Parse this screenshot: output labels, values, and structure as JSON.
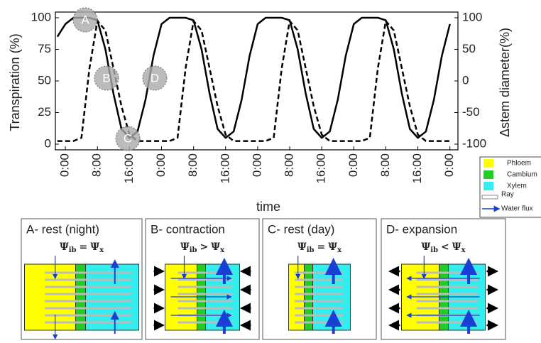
{
  "chart_data": {
    "type": "line",
    "ylabel": "Transpiration (%)",
    "y2label": "Δstem diameter(%)",
    "xlabel": "time",
    "x": [
      -2,
      0,
      2,
      4,
      6,
      8,
      10,
      12,
      14,
      16,
      18,
      20,
      22,
      24,
      26,
      28,
      30,
      32,
      34,
      36,
      38,
      40,
      42,
      44,
      46,
      48,
      50,
      52,
      54,
      56,
      58,
      60,
      62,
      64,
      66,
      68,
      70,
      72,
      74,
      76,
      78,
      80,
      82,
      84,
      86,
      88,
      90,
      92,
      94,
      96
    ],
    "xlim": [
      -2.5,
      98
    ],
    "xticks": [
      {
        "value": 0,
        "label": "0:00"
      },
      {
        "value": 8,
        "label": "8:00"
      },
      {
        "value": 16,
        "label": "16:00"
      },
      {
        "value": 24,
        "label": "0:00"
      },
      {
        "value": 32,
        "label": "8:00"
      },
      {
        "value": 40,
        "label": "16:00"
      },
      {
        "value": 48,
        "label": "0:00"
      },
      {
        "value": 56,
        "label": "8:00"
      },
      {
        "value": 64,
        "label": "16:00"
      },
      {
        "value": 72,
        "label": "0:00"
      },
      {
        "value": 80,
        "label": "8:00"
      },
      {
        "value": 88,
        "label": "16:00"
      },
      {
        "value": 96,
        "label": "0:00"
      }
    ],
    "ylim": [
      0,
      100
    ],
    "yticks": [
      0,
      25,
      50,
      75,
      100
    ],
    "y2lim": [
      -100,
      100
    ],
    "y2ticks": [
      -100,
      -50,
      0,
      50,
      100
    ],
    "series": [
      {
        "color": "#000000",
        "linestyle": "solid",
        "values": [
          85,
          95,
          100,
          100,
          100,
          98,
          75,
          40,
          12,
          5,
          10,
          35,
          70,
          95,
          100,
          100,
          100,
          98,
          75,
          40,
          12,
          5,
          10,
          35,
          70,
          95,
          100,
          100,
          100,
          98,
          75,
          40,
          12,
          5,
          10,
          35,
          70,
          95,
          100,
          100,
          100,
          98,
          75,
          40,
          12,
          5,
          10,
          35,
          70,
          95
        ]
      },
      {
        "color": "#000000",
        "linestyle": "dashed",
        "axis": "y2",
        "values": [
          -95,
          -95,
          -95,
          -90,
          20,
          95,
          80,
          20,
          -40,
          -85,
          -95,
          -95,
          -95,
          -95,
          -95,
          -90,
          20,
          95,
          80,
          20,
          -40,
          -85,
          -95,
          -95,
          -95,
          -95,
          -95,
          -90,
          20,
          95,
          80,
          20,
          -40,
          -85,
          -95,
          -95,
          -95,
          -95,
          -95,
          -90,
          20,
          95,
          80,
          20,
          -40,
          -85,
          -95,
          -95,
          -95,
          -95
        ]
      }
    ],
    "annotations": [
      "A",
      "B",
      "C",
      "D"
    ]
  },
  "legend": [
    {
      "label": "Phloem",
      "color": "#ffff00"
    },
    {
      "label": "Cambium",
      "color": "#22cc22"
    },
    {
      "label": "Xylem",
      "color": "#33eeee"
    },
    {
      "label": "Ray",
      "color": "#cccccc"
    },
    {
      "label": "Water flux",
      "color": "#1a3fd6"
    }
  ],
  "formula": {
    "psi": "Ψ",
    "sub_ib": "ib",
    "sub_x": "x"
  },
  "panels": [
    {
      "title": "A- rest (night)",
      "op": "="
    },
    {
      "title": "B- contraction",
      "op": ">"
    },
    {
      "title": "C- rest (day)",
      "op": "="
    },
    {
      "title": "D- expansion",
      "op": "<"
    }
  ]
}
